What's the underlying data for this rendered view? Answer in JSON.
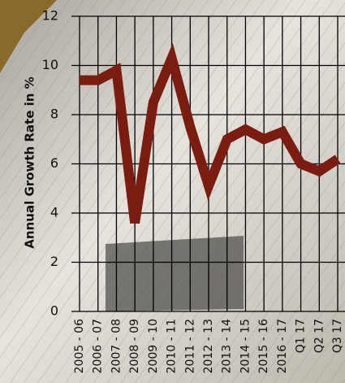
{
  "chart_data": {
    "type": "line",
    "y_label": "Annual Growth Rate in %",
    "categories": [
      "2005 - 06",
      "2006 - 07",
      "2007 - 08",
      "2008 - 09",
      "2009 - 10",
      "2010 - 11",
      "2011 - 12",
      "2012 - 13",
      "2013 - 14",
      "2014 - 15",
      "2015 - 16",
      "2016 - 17",
      "Q1 17",
      "Q2 17",
      "Q3 17"
    ],
    "values": [
      9.4,
      9.4,
      9.8,
      3.6,
      8.5,
      10.3,
      7.5,
      5.1,
      7.0,
      7.4,
      7.0,
      7.3,
      6.0,
      5.7,
      6.2
    ],
    "color": "#7b1c10",
    "ylim": [
      0,
      12
    ],
    "yticks": [
      0,
      2,
      4,
      6,
      8,
      10,
      12
    ],
    "grid": true
  }
}
